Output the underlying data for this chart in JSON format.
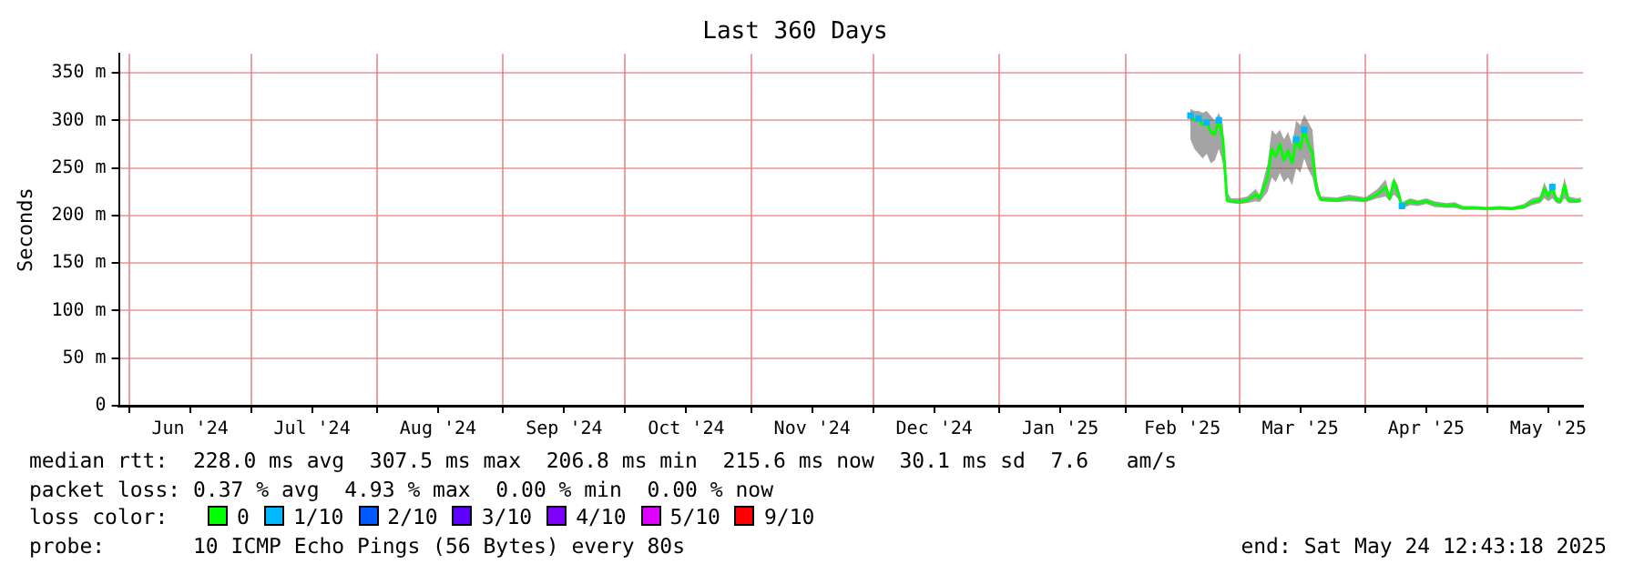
{
  "chart_data": {
    "type": "line",
    "title": "Last 360 Days",
    "ylabel": "Seconds",
    "legend_title": "loss color:",
    "legend": "bottom",
    "grid": true,
    "xlim": [
      "2024-05-29T12:43",
      "2025-05-24T12:43"
    ],
    "xticks": [
      {
        "value": "2024-06-01",
        "label": null
      },
      {
        "value": "2024-06-16",
        "label": "Jun '24"
      },
      {
        "value": "2024-07-01",
        "label": null
      },
      {
        "value": "2024-07-16",
        "label": "Jul '24"
      },
      {
        "value": "2024-08-01",
        "label": null
      },
      {
        "value": "2024-08-16",
        "label": "Aug '24"
      },
      {
        "value": "2024-09-01",
        "label": null
      },
      {
        "value": "2024-09-16",
        "label": "Sep '24"
      },
      {
        "value": "2024-10-01",
        "label": null
      },
      {
        "value": "2024-10-16",
        "label": "Oct '24"
      },
      {
        "value": "2024-11-01",
        "label": null
      },
      {
        "value": "2024-11-16",
        "label": "Nov '24"
      },
      {
        "value": "2024-12-01",
        "label": null
      },
      {
        "value": "2024-12-16",
        "label": "Dec '24"
      },
      {
        "value": "2025-01-01",
        "label": null
      },
      {
        "value": "2025-01-16",
        "label": "Jan '25"
      },
      {
        "value": "2025-02-01",
        "label": null
      },
      {
        "value": "2025-02-15",
        "label": "Feb '25"
      },
      {
        "value": "2025-03-01",
        "label": null
      },
      {
        "value": "2025-03-16",
        "label": "Mar '25"
      },
      {
        "value": "2025-04-01",
        "label": null
      },
      {
        "value": "2025-04-16",
        "label": "Apr '25"
      },
      {
        "value": "2025-05-01",
        "label": null
      },
      {
        "value": "2025-05-16",
        "label": "May '25"
      }
    ],
    "ylim": [
      0,
      370
    ],
    "yticks": [
      0,
      {
        "value": 50,
        "label": "50 m"
      },
      {
        "value": 100,
        "label": "100 m"
      },
      {
        "value": 150,
        "label": "150 m"
      },
      {
        "value": 200,
        "label": "200 m"
      },
      {
        "value": 250,
        "label": "250 m"
      },
      {
        "value": 300,
        "label": "300 m"
      },
      {
        "value": 350,
        "label": "350 m"
      }
    ],
    "series": [
      {
        "name": "0",
        "color": "#00ff00",
        "x": [
          "2025-02-17",
          "2025-02-18",
          "2025-02-19",
          "2025-02-20",
          "2025-02-21",
          "2025-02-22",
          "2025-02-23",
          "2025-02-24",
          "2025-02-25",
          "2025-02-26",
          "2025-02-27",
          "2025-03-01",
          "2025-03-03",
          "2025-03-05",
          "2025-03-06",
          "2025-03-08",
          "2025-03-09",
          "2025-03-10",
          "2025-03-11",
          "2025-03-12",
          "2025-03-13",
          "2025-03-14",
          "2025-03-15",
          "2025-03-16",
          "2025-03-17",
          "2025-03-18",
          "2025-03-19",
          "2025-03-20",
          "2025-03-21",
          "2025-03-25",
          "2025-03-28",
          "2025-04-01",
          "2025-04-04",
          "2025-04-06",
          "2025-04-07",
          "2025-04-08",
          "2025-04-09",
          "2025-04-10",
          "2025-04-12",
          "2025-04-14",
          "2025-04-16",
          "2025-04-18",
          "2025-04-21",
          "2025-04-23",
          "2025-04-25",
          "2025-04-28",
          "2025-05-01",
          "2025-05-04",
          "2025-05-07",
          "2025-05-10",
          "2025-05-12",
          "2025-05-14",
          "2025-05-15",
          "2025-05-16",
          "2025-05-17",
          "2025-05-18",
          "2025-05-19",
          "2025-05-20",
          "2025-05-21",
          "2025-05-23",
          "2025-05-24"
        ],
        "values": [
          305,
          300,
          302,
          295,
          298,
          288,
          285,
          300,
          280,
          216,
          215,
          214,
          216,
          222,
          218,
          240,
          270,
          262,
          275,
          258,
          268,
          255,
          280,
          270,
          290,
          275,
          265,
          228,
          217,
          216,
          218,
          216,
          222,
          230,
          218,
          236,
          225,
          210,
          215,
          213,
          215,
          212,
          210,
          211,
          208,
          208,
          207,
          208,
          207,
          209,
          214,
          216,
          228,
          220,
          230,
          216,
          215,
          232,
          216,
          215,
          216
        ],
        "lower": [
          280,
          270,
          265,
          260,
          265,
          255,
          258,
          270,
          255,
          214,
          213,
          212,
          213,
          215,
          214,
          225,
          240,
          235,
          245,
          235,
          240,
          232,
          250,
          245,
          260,
          248,
          240,
          222,
          215,
          214,
          215,
          214,
          218,
          220,
          215,
          222,
          218,
          207,
          211,
          210,
          212,
          209,
          208,
          208,
          206,
          206,
          206,
          206,
          206,
          207,
          211,
          213,
          218,
          215,
          218,
          213,
          212,
          218,
          213,
          213,
          214
        ],
        "upper": [
          312,
          310,
          310,
          308,
          310,
          305,
          300,
          308,
          295,
          225,
          218,
          218,
          220,
          228,
          222,
          255,
          290,
          285,
          290,
          280,
          288,
          275,
          300,
          295,
          306,
          298,
          290,
          240,
          220,
          219,
          222,
          219,
          228,
          238,
          222,
          240,
          232,
          214,
          218,
          216,
          218,
          215,
          213,
          214,
          210,
          210,
          209,
          210,
          209,
          212,
          218,
          220,
          235,
          225,
          235,
          220,
          218,
          240,
          220,
          218,
          219
        ]
      },
      {
        "name": "1/10",
        "type": "scatter",
        "marker": "square",
        "color": "#00b8ff",
        "x": [
          "2025-02-17",
          "2025-02-19",
          "2025-02-21",
          "2025-02-24",
          "2025-03-15",
          "2025-03-17",
          "2025-04-10",
          "2025-05-17"
        ],
        "values": [
          305,
          302,
          298,
          300,
          280,
          290,
          210,
          230
        ]
      },
      {
        "name": "2/10",
        "type": "scatter",
        "marker": "square",
        "color": "#0059ff"
      },
      {
        "name": "3/10",
        "type": "scatter",
        "marker": "square",
        "color": "#5e00ff"
      },
      {
        "name": "4/10",
        "type": "scatter",
        "marker": "square",
        "color": "#7e00ff"
      },
      {
        "name": "5/10",
        "type": "scatter",
        "marker": "square",
        "color": "#dd00ff"
      },
      {
        "name": "9/10",
        "type": "scatter",
        "marker": "square",
        "color": "#ff0000"
      }
    ],
    "annotations": [
      "median rtt:  228.0 ms avg  307.5 ms max  206.8 ms min  215.6 ms now  30.1 ms sd  7.6   am/s",
      "packet loss: 0.37 % avg  4.93 % max  0.00 % min  0.00 % now",
      "probe:       10 ICMP Echo Pings (56 Bytes) every 80s",
      "end: Sat May 24 12:43:18 2025"
    ]
  }
}
